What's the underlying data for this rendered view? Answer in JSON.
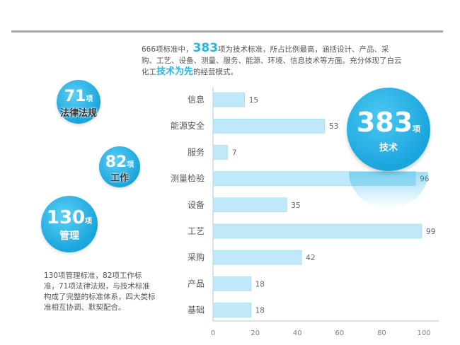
{
  "intro": {
    "part1": "666项标准中，",
    "highlight_num": "383",
    "part2": "项为技术标准，所占比例最高，涵括设计、产品、采购、工艺、设备、测量、服务、能源、环境、信息技术等方面。充分体现了白云化工",
    "highlight_text": "技术为先",
    "part3": "的经营模式。"
  },
  "circles": {
    "laws": {
      "number": "71",
      "unit": "项",
      "label": "法律法规"
    },
    "work": {
      "number": "82",
      "unit": "项",
      "label": "工作"
    },
    "management": {
      "number": "130",
      "unit": "项",
      "label": "管理"
    },
    "technical": {
      "number": "383",
      "unit": "项",
      "label": "技术"
    }
  },
  "summary": "130项管理标准，82项工作标准，71项法律法规，与技术标准构成了完整的标准体系，四大类标准相互协调、默契配合。",
  "colors": {
    "accent": "#25b7e8",
    "bar": "#bfe8f8",
    "bar_edge": "#9dd8f0"
  },
  "chart_data": {
    "type": "bar",
    "orientation": "horizontal",
    "categories": [
      "信息",
      "能源安全",
      "服务",
      "测量检验",
      "设备",
      "工艺",
      "采购",
      "产品",
      "基础"
    ],
    "values": [
      15,
      53,
      7,
      96,
      35,
      99,
      42,
      18,
      18
    ],
    "xlim": [
      0,
      100
    ],
    "xticks": [
      0,
      20,
      40,
      60,
      80,
      100
    ],
    "title": "",
    "xlabel": "",
    "ylabel": "",
    "grid": false
  }
}
